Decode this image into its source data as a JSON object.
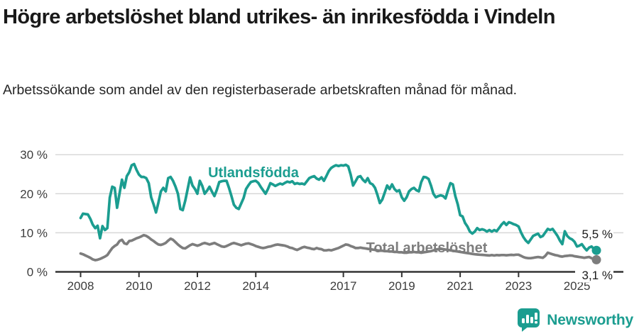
{
  "header": {
    "title": "Högre arbetslöshet bland utrikes- än inrikesfödda i Vindeln",
    "subtitle": "Arbetssökande som andel av den registerbaserade arbetskraften månad för månad."
  },
  "footer": {
    "brand": "Newsworthy"
  },
  "colors": {
    "accent": "#1b9d90",
    "secondary_line": "#7d7d7d",
    "axis": "#333333",
    "grid": "#d8d8d8",
    "tick_text": "#3c3c3c",
    "title_text": "#191919"
  },
  "chart_data": {
    "type": "line",
    "title": "Högre arbetslöshet bland utrikes- än inrikesfödda i Vindeln",
    "subtitle": "Arbetssökande som andel av den registerbaserade arbetskraften månad för månad.",
    "x_unit": "month",
    "x_range": "2008-01 till 2025-09",
    "x_start_year": 2008,
    "x_ticks": [
      2008,
      2010,
      2012,
      2014,
      2017,
      2019,
      2021,
      2023,
      2025
    ],
    "x_tick_labels": [
      "2008",
      "2010",
      "2012",
      "2014",
      "2017",
      "2019",
      "2021",
      "2023",
      "2025"
    ],
    "y_ticks": [
      0,
      10,
      20,
      30
    ],
    "y_tick_labels": [
      "0 %",
      "10 %",
      "20 %",
      "30 %"
    ],
    "ylim": [
      0,
      30
    ],
    "grid": "horizontal",
    "legend_position": "inline-labels",
    "series": [
      {
        "name": "Utlandsfödda",
        "slug": "utlandsfodda",
        "color": "#1b9d90",
        "end_label": "5,5 %",
        "end_value": 5.5,
        "values": [
          13.8,
          14.9,
          14.8,
          14.7,
          13.6,
          12.1,
          11.2,
          11.8,
          8.6,
          11.7,
          10.7,
          11.2,
          19.0,
          21.8,
          21.5,
          16.4,
          20.0,
          23.6,
          21.5,
          24.5,
          25.5,
          27.3,
          27.6,
          26.1,
          24.9,
          24.3,
          24.3,
          24.0,
          22.7,
          19.1,
          17.3,
          15.2,
          17.8,
          20.6,
          21.5,
          20.6,
          24.0,
          24.3,
          23.3,
          21.8,
          20.0,
          16.1,
          15.8,
          18.2,
          21.2,
          24.2,
          22.1,
          21.2,
          20.0,
          23.3,
          22.0,
          20.0,
          20.8,
          21.8,
          20.5,
          19.4,
          21.0,
          23.0,
          23.2,
          23.3,
          23.3,
          21.5,
          19.4,
          17.2,
          16.4,
          16.1,
          17.5,
          18.9,
          21.2,
          22.2,
          23.0,
          23.2,
          23.3,
          22.8,
          21.8,
          20.9,
          20.0,
          21.2,
          22.7,
          22.4,
          22.0,
          22.3,
          22.6,
          22.4,
          22.8,
          23.1,
          22.9,
          23.2,
          22.5,
          22.7,
          22.5,
          22.6,
          22.4,
          23.2,
          24.0,
          24.3,
          24.5,
          23.9,
          23.6,
          24.2,
          23.3,
          24.5,
          25.8,
          26.6,
          27.0,
          27.3,
          27.1,
          27.3,
          27.2,
          27.4,
          27.0,
          24.9,
          22.1,
          23.2,
          24.3,
          24.5,
          23.6,
          23.0,
          24.0,
          22.7,
          22.4,
          21.5,
          19.7,
          17.6,
          18.5,
          20.3,
          22.1,
          21.2,
          22.4,
          21.2,
          20.6,
          20.9,
          19.1,
          18.2,
          19.1,
          20.6,
          21.2,
          21.5,
          20.9,
          20.6,
          23.0,
          24.3,
          24.2,
          23.8,
          22.1,
          20.0,
          19.1,
          19.4,
          19.6,
          19.4,
          18.8,
          20.9,
          22.7,
          22.4,
          19.4,
          17.3,
          14.5,
          14.2,
          12.5,
          11.6,
          10.3,
          9.8,
          10.3,
          11.2,
          10.7,
          10.9,
          10.7,
          10.3,
          10.7,
          10.3,
          10.7,
          10.4,
          11.2,
          12.1,
          12.7,
          12.0,
          12.7,
          12.5,
          12.2,
          12.0,
          11.6,
          10.1,
          8.9,
          8.0,
          7.4,
          8.3,
          9.2,
          9.5,
          9.8,
          8.9,
          9.2,
          10.1,
          11.0,
          10.7,
          11.0,
          10.1,
          9.2,
          8.0,
          7.1,
          10.4,
          9.2,
          8.6,
          8.3,
          7.7,
          6.5,
          6.7,
          7.1,
          6.2,
          5.5,
          6.2,
          6.5,
          5.8,
          5.5
        ]
      },
      {
        "name": "Total arbetslöshet",
        "slug": "total-arbetsloshet",
        "color": "#7d7d7d",
        "end_label": "3,1 %",
        "end_value": 3.1,
        "values": [
          4.7,
          4.5,
          4.2,
          3.9,
          3.6,
          3.2,
          3.0,
          3.1,
          3.3,
          3.6,
          3.9,
          4.3,
          5.2,
          6.1,
          6.6,
          7.0,
          7.9,
          8.2,
          7.3,
          7.1,
          7.9,
          8.0,
          8.3,
          8.6,
          8.8,
          9.1,
          9.4,
          9.2,
          8.8,
          8.3,
          7.9,
          7.4,
          7.0,
          6.9,
          7.1,
          7.4,
          8.0,
          8.5,
          8.2,
          7.6,
          7.0,
          6.5,
          6.1,
          6.0,
          6.4,
          6.8,
          7.1,
          6.9,
          6.7,
          6.9,
          7.2,
          7.4,
          7.2,
          7.0,
          7.2,
          7.4,
          7.1,
          6.8,
          6.5,
          6.4,
          6.6,
          6.9,
          7.2,
          7.4,
          7.2,
          7.0,
          6.8,
          7.0,
          7.2,
          7.3,
          7.1,
          6.9,
          6.6,
          6.4,
          6.2,
          6.1,
          6.2,
          6.4,
          6.5,
          6.7,
          6.9,
          7.0,
          6.9,
          6.8,
          6.7,
          6.5,
          6.2,
          6.1,
          5.8,
          5.6,
          5.9,
          6.2,
          6.4,
          6.2,
          6.1,
          5.9,
          5.8,
          6.1,
          5.9,
          5.8,
          5.5,
          5.5,
          5.6,
          5.5,
          5.7,
          5.9,
          6.1,
          6.4,
          6.7,
          7.0,
          6.9,
          6.6,
          6.4,
          6.1,
          6.1,
          6.2,
          6.1,
          6.0,
          5.9,
          5.8,
          5.7,
          5.6,
          5.5,
          5.4,
          5.4,
          5.3,
          5.3,
          5.2,
          5.2,
          5.1,
          5.1,
          5.0,
          5.0,
          4.9,
          4.9,
          5.0,
          5.0,
          5.1,
          5.0,
          5.0,
          4.9,
          5.0,
          5.1,
          5.2,
          5.3,
          5.5,
          5.7,
          5.8,
          5.9,
          5.8,
          5.7,
          5.6,
          5.5,
          5.4,
          5.3,
          5.2,
          5.1,
          5.0,
          4.9,
          4.8,
          4.7,
          4.6,
          4.5,
          4.45,
          4.4,
          4.35,
          4.3,
          4.25,
          4.2,
          4.3,
          4.2,
          4.3,
          4.25,
          4.3,
          4.3,
          4.25,
          4.3,
          4.35,
          4.3,
          4.4,
          4.4,
          4.1,
          3.8,
          3.6,
          3.5,
          3.5,
          3.6,
          3.7,
          3.8,
          3.7,
          3.6,
          4.1,
          4.9,
          4.7,
          4.5,
          4.3,
          4.2,
          4.0,
          3.9,
          4.05,
          4.1,
          4.2,
          4.15,
          4.0,
          3.9,
          3.8,
          3.7,
          3.6,
          3.7,
          3.8,
          3.5,
          3.3,
          3.1
        ]
      }
    ]
  }
}
